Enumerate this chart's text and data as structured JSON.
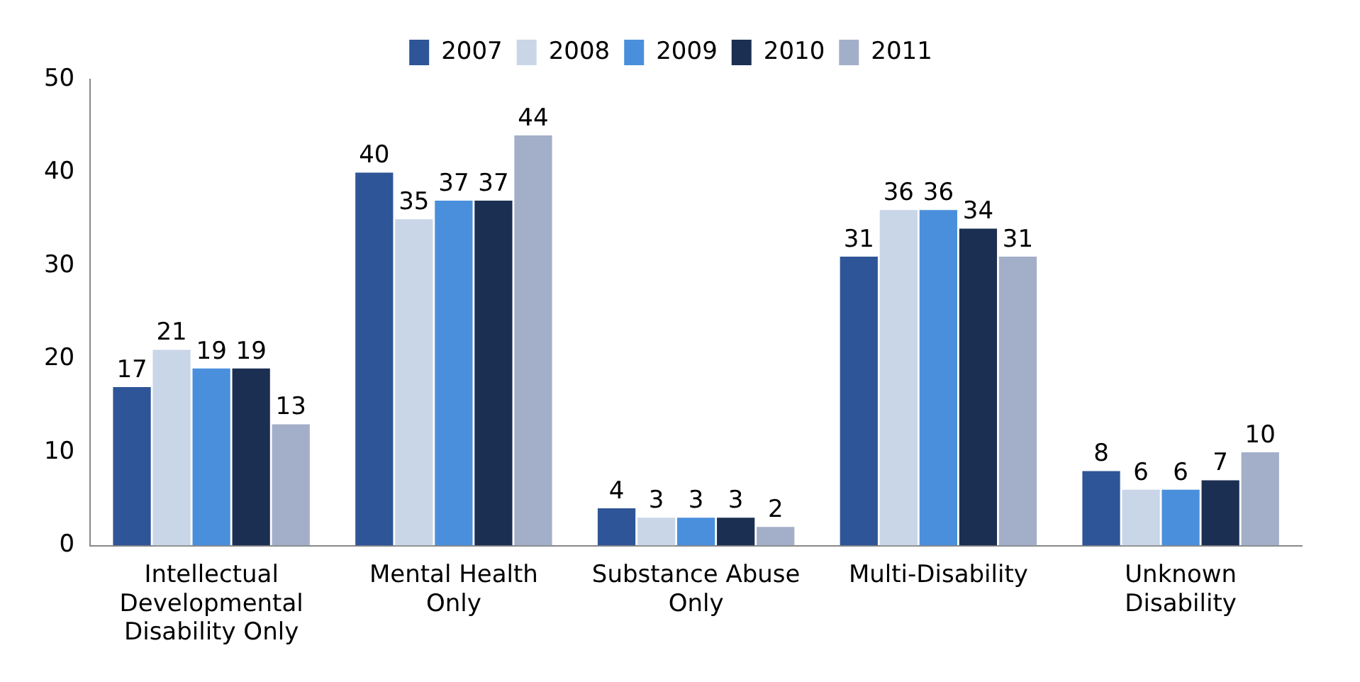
{
  "chart_data": {
    "type": "bar",
    "categories": [
      "Intellectual Developmental Disability Only",
      "Mental Health Only",
      "Substance Abuse Only",
      "Multi-Disability",
      "Unknown Disability"
    ],
    "series": [
      {
        "name": "2007",
        "color": "#2e5597",
        "values": [
          17,
          40,
          4,
          31,
          8
        ]
      },
      {
        "name": "2008",
        "color": "#c9d6e8",
        "values": [
          21,
          35,
          3,
          36,
          6
        ]
      },
      {
        "name": "2009",
        "color": "#4a8fdc",
        "values": [
          19,
          37,
          3,
          36,
          6
        ]
      },
      {
        "name": "2010",
        "color": "#1b2f52",
        "values": [
          19,
          37,
          3,
          34,
          7
        ]
      },
      {
        "name": "2011",
        "color": "#a3afc9",
        "values": [
          13,
          44,
          2,
          31,
          10
        ]
      }
    ],
    "ylim": [
      0,
      50
    ],
    "yticks": [
      0,
      10,
      20,
      30,
      40,
      50
    ],
    "grid": false,
    "legend": "top",
    "data_labels": true
  }
}
